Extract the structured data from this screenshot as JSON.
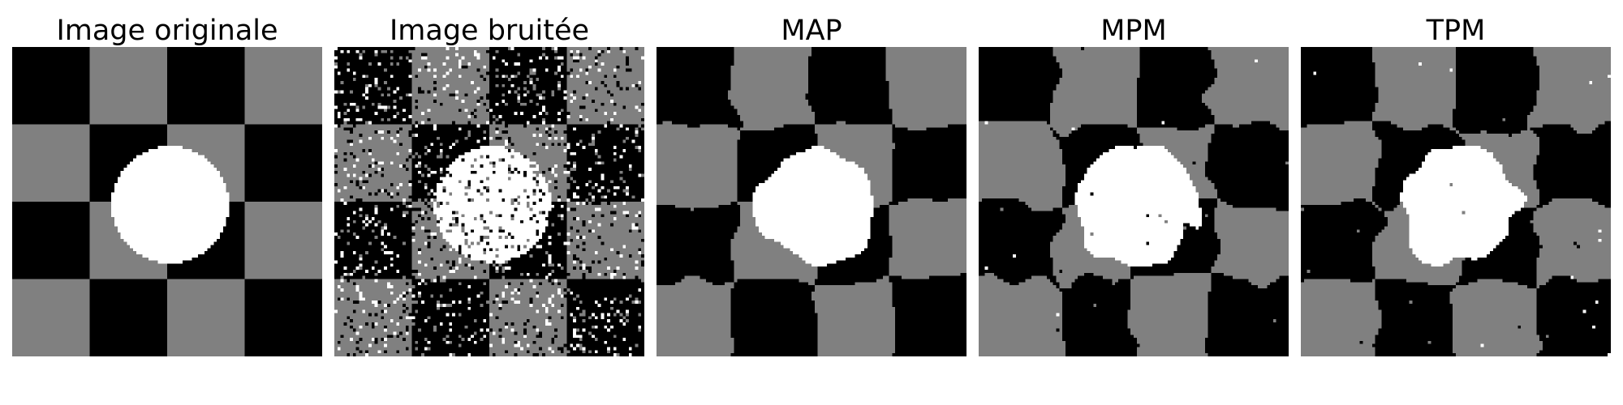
{
  "panels": [
    {
      "title": "Image originale",
      "noise": 0.0,
      "blob": 0.0
    },
    {
      "title": "Image bruitée",
      "noise": 0.22,
      "blob": 0.0
    },
    {
      "title": "MAP",
      "noise": 0.0,
      "blob": 0.55
    },
    {
      "title": "MPM",
      "noise": 0.004,
      "blob": 0.85
    },
    {
      "title": "TPM",
      "noise": 0.004,
      "blob": 0.85
    }
  ],
  "palette": {
    "dark": "#000000",
    "mid": "#808080",
    "light": "#ffffff"
  }
}
